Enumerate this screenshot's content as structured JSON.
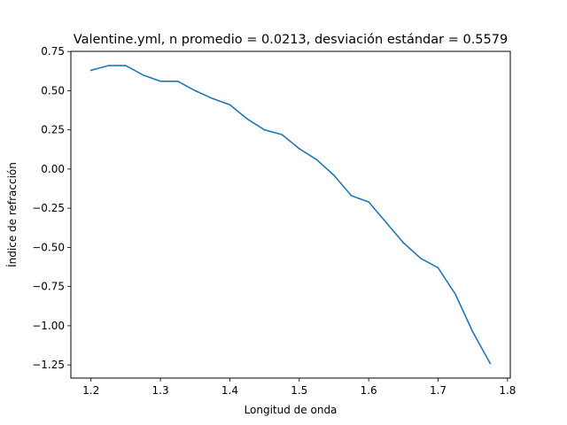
{
  "chart_data": {
    "type": "line",
    "title": "Valentine.yml, n promedio = 0.0213, desviación estándar = 0.5579",
    "xlabel": "Longitud de onda",
    "ylabel": "Índice de refracción",
    "xlim": [
      1.171,
      1.804
    ],
    "ylim": [
      -1.334,
      0.751
    ],
    "xticks": [
      1.2,
      1.3,
      1.4,
      1.5,
      1.6,
      1.7,
      1.8
    ],
    "xtick_labels": [
      "1.2",
      "1.3",
      "1.4",
      "1.5",
      "1.6",
      "1.7",
      "1.8"
    ],
    "yticks": [
      0.75,
      0.5,
      0.25,
      0.0,
      -0.25,
      -0.5,
      -0.75,
      -1.0,
      -1.25
    ],
    "ytick_labels": [
      "0.75",
      "0.50",
      "0.25",
      "0.00",
      "−0.25",
      "−0.50",
      "−0.75",
      "−1.00",
      "−1.25"
    ],
    "grid": false,
    "legend": "none",
    "series": [
      {
        "color": "#1f77b4",
        "x": [
          1.2,
          1.225,
          1.25,
          1.275,
          1.3,
          1.325,
          1.35,
          1.375,
          1.4,
          1.425,
          1.45,
          1.475,
          1.5,
          1.525,
          1.55,
          1.575,
          1.6,
          1.625,
          1.65,
          1.675,
          1.7,
          1.725,
          1.75,
          1.775
        ],
        "y": [
          0.63,
          0.66,
          0.66,
          0.6,
          0.56,
          0.56,
          0.5,
          0.45,
          0.41,
          0.32,
          0.25,
          0.22,
          0.13,
          0.06,
          -0.04,
          -0.17,
          -0.21,
          -0.34,
          -0.47,
          -0.57,
          -0.63,
          -0.8,
          -1.04,
          -1.24
        ]
      }
    ]
  }
}
